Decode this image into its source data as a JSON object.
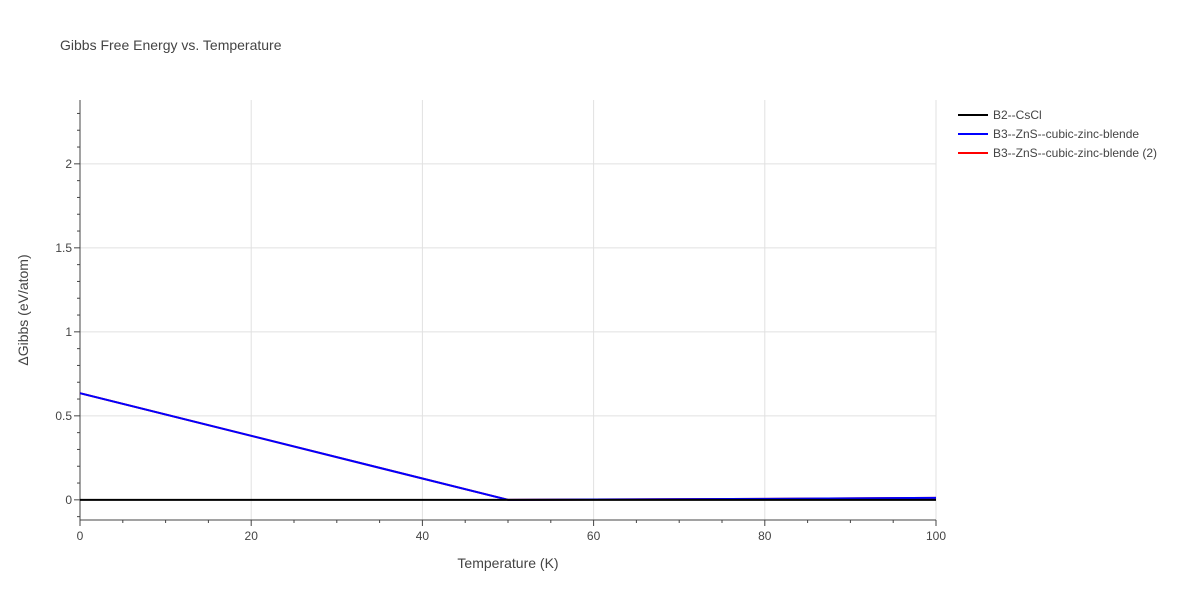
{
  "chart_data": {
    "type": "line",
    "title": "Gibbs Free Energy vs. Temperature",
    "xlabel": "Temperature (K)",
    "ylabel": "ΔGibbs (eV/atom)",
    "xlim": [
      0,
      100
    ],
    "ylim": [
      -0.12,
      2.38
    ],
    "xticks": [
      0,
      20,
      40,
      60,
      80,
      100
    ],
    "yticks": [
      0,
      0.5,
      1,
      1.5,
      2
    ],
    "xtick_labels": [
      "0",
      "20",
      "40",
      "60",
      "80",
      "100"
    ],
    "ytick_labels": [
      "0",
      "0.5",
      "1",
      "1.5",
      "2"
    ],
    "grid": true,
    "legend_position": "top-right outside",
    "series": [
      {
        "name": "B2--CsCl",
        "color": "#000000",
        "x": [
          0,
          100
        ],
        "y": [
          0,
          0
        ]
      },
      {
        "name": "B3--ZnS--cubic-zinc-blende",
        "color": "#0000ff",
        "x": [
          0,
          50,
          60,
          80,
          100
        ],
        "y": [
          0.635,
          0,
          0.002,
          0.006,
          0.012
        ]
      },
      {
        "name": "B3--ZnS--cubic-zinc-blende (2)",
        "color": "#ff0000",
        "x": [
          0,
          50,
          60,
          80,
          100
        ],
        "y": [
          0.635,
          0,
          0.002,
          0.006,
          0.012
        ]
      }
    ]
  }
}
